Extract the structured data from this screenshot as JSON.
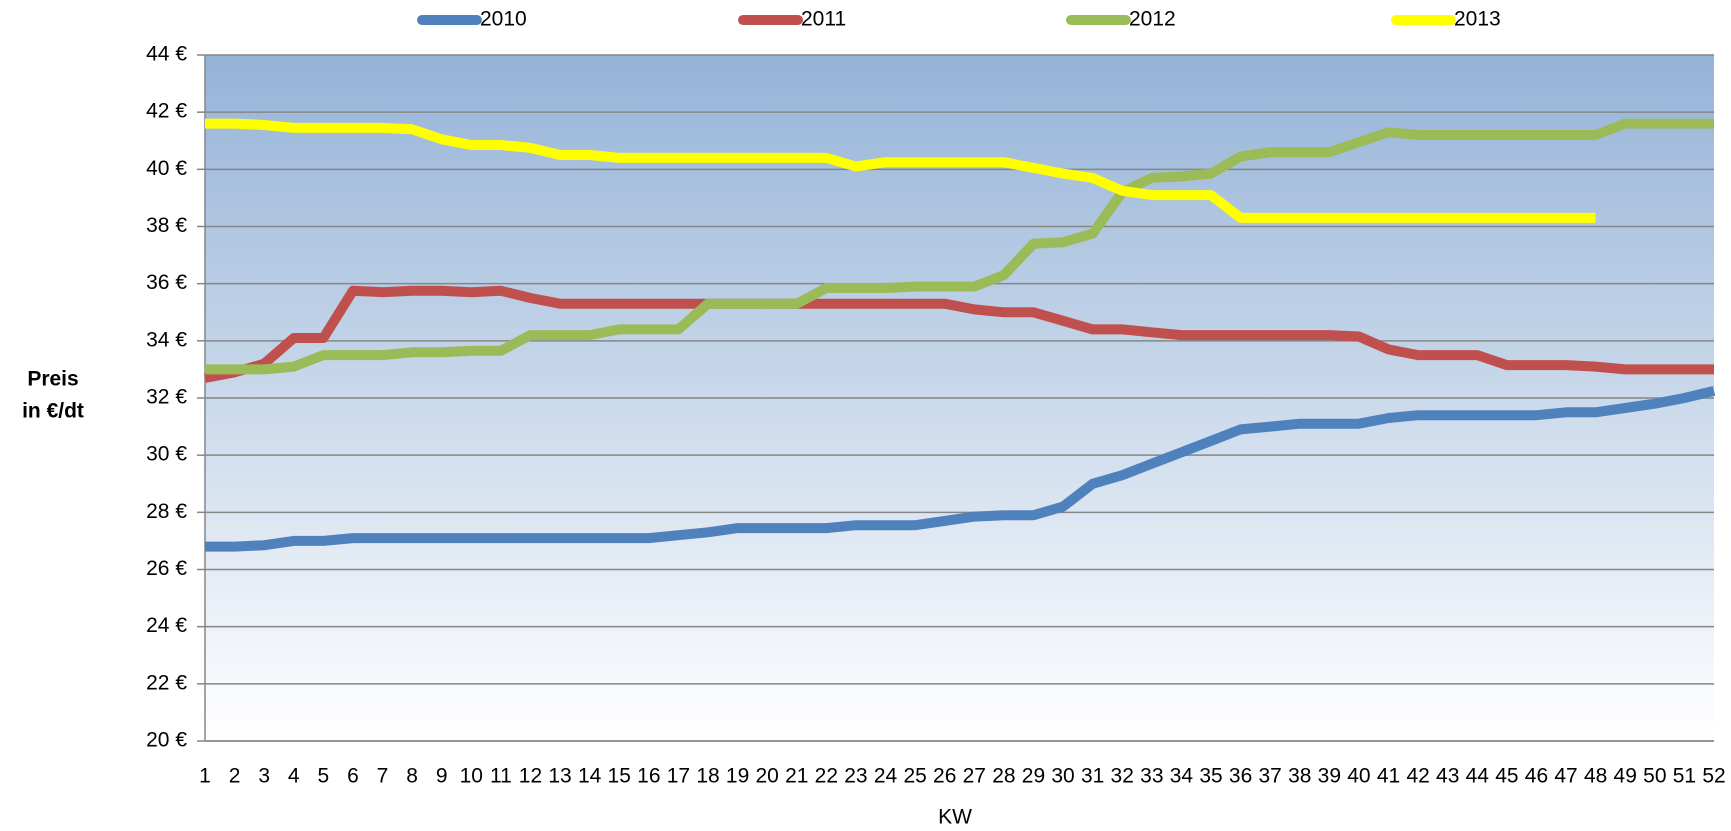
{
  "chart_data": {
    "type": "line",
    "xlabel": "KW",
    "ylabel": [
      "Preis",
      "in €/dt"
    ],
    "categories": [
      "1",
      "2",
      "3",
      "4",
      "5",
      "6",
      "7",
      "8",
      "9",
      "10",
      "11",
      "12",
      "13",
      "14",
      "15",
      "16",
      "17",
      "18",
      "19",
      "20",
      "21",
      "22",
      "23",
      "24",
      "25",
      "26",
      "27",
      "28",
      "29",
      "30",
      "31",
      "32",
      "33",
      "34",
      "35",
      "36",
      "37",
      "38",
      "39",
      "40",
      "41",
      "42",
      "43",
      "44",
      "45",
      "46",
      "47",
      "48",
      "49",
      "50",
      "51",
      "52"
    ],
    "series": [
      {
        "name": "2010",
        "color": "#4f81bd",
        "values": [
          26.8,
          26.8,
          26.85,
          27.0,
          27.0,
          27.1,
          27.1,
          27.1,
          27.1,
          27.1,
          27.1,
          27.1,
          27.1,
          27.1,
          27.1,
          27.1,
          27.2,
          27.3,
          27.45,
          27.45,
          27.45,
          27.45,
          27.55,
          27.55,
          27.55,
          27.7,
          27.85,
          27.9,
          27.9,
          28.2,
          29.0,
          29.3,
          29.7,
          30.1,
          30.5,
          30.9,
          31.0,
          31.1,
          31.1,
          31.1,
          31.3,
          31.4,
          31.4,
          31.4,
          31.4,
          31.4,
          31.5,
          31.5,
          31.65,
          31.8,
          32.0,
          32.25
        ]
      },
      {
        "name": "2011",
        "color": "#c0504d",
        "values": [
          32.7,
          32.9,
          33.2,
          34.1,
          34.1,
          35.75,
          35.7,
          35.75,
          35.75,
          35.7,
          35.75,
          35.5,
          35.3,
          35.3,
          35.3,
          35.3,
          35.3,
          35.3,
          35.3,
          35.3,
          35.3,
          35.3,
          35.3,
          35.3,
          35.3,
          35.3,
          35.1,
          35.0,
          35.0,
          34.7,
          34.4,
          34.4,
          34.3,
          34.2,
          34.2,
          34.2,
          34.2,
          34.2,
          34.2,
          34.15,
          33.7,
          33.5,
          33.5,
          33.5,
          33.15,
          33.15,
          33.15,
          33.1,
          33.0,
          33.0,
          33.0,
          33.0
        ]
      },
      {
        "name": "2012",
        "color": "#9bbb59",
        "values": [
          33.0,
          33.0,
          33.0,
          33.1,
          33.5,
          33.5,
          33.5,
          33.6,
          33.6,
          33.65,
          33.65,
          34.2,
          34.2,
          34.2,
          34.4,
          34.4,
          34.4,
          35.3,
          35.3,
          35.3,
          35.3,
          35.85,
          35.85,
          35.85,
          35.9,
          35.9,
          35.9,
          36.3,
          37.4,
          37.45,
          37.75,
          39.2,
          39.7,
          39.75,
          39.85,
          40.45,
          40.6,
          40.6,
          40.6,
          40.95,
          41.3,
          41.2,
          41.2,
          41.2,
          41.2,
          41.2,
          41.2,
          41.2,
          41.6,
          41.6,
          41.6,
          41.6
        ]
      },
      {
        "name": "2013",
        "color": "#ffff00",
        "values": [
          41.6,
          41.6,
          41.55,
          41.45,
          41.45,
          41.45,
          41.45,
          41.4,
          41.05,
          40.85,
          40.85,
          40.75,
          40.5,
          40.5,
          40.4,
          40.4,
          40.4,
          40.4,
          40.4,
          40.4,
          40.4,
          40.4,
          40.1,
          40.25,
          40.25,
          40.25,
          40.25,
          40.25,
          40.05,
          39.85,
          39.7,
          39.25,
          39.1,
          39.1,
          39.1,
          38.3,
          38.3,
          38.3,
          38.3,
          38.3,
          38.3,
          38.3,
          38.3,
          38.3,
          38.3,
          38.3,
          38.3,
          38.3,
          null,
          null,
          null,
          null
        ]
      }
    ],
    "ylim": [
      20,
      44
    ],
    "yticks": [
      {
        "value": 20,
        "label": "20 €"
      },
      {
        "value": 22,
        "label": "22 €"
      },
      {
        "value": 24,
        "label": "24 €"
      },
      {
        "value": 26,
        "label": "26 €"
      },
      {
        "value": 28,
        "label": "28 €"
      },
      {
        "value": 30,
        "label": "30 €"
      },
      {
        "value": 32,
        "label": "32 €"
      },
      {
        "value": 34,
        "label": "34 €"
      },
      {
        "value": 36,
        "label": "36 €"
      },
      {
        "value": 38,
        "label": "38 €"
      },
      {
        "value": 40,
        "label": "40 €"
      },
      {
        "value": 42,
        "label": "42 €"
      },
      {
        "value": 44,
        "label": "44 €"
      }
    ],
    "grid": true,
    "legend": "top"
  }
}
